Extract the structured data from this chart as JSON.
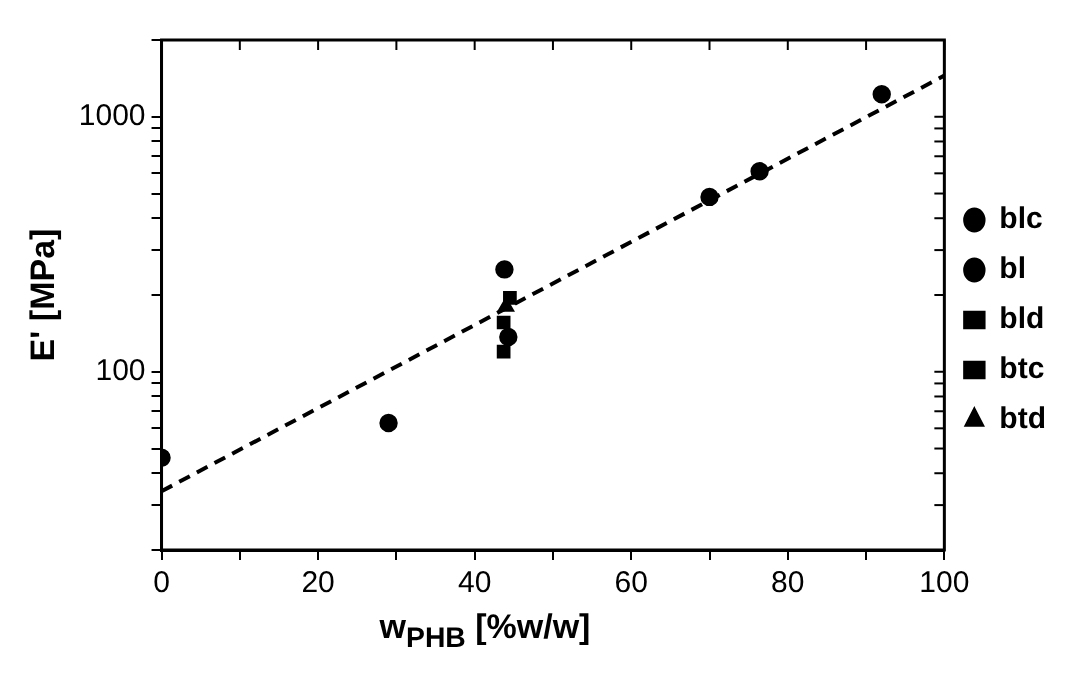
{
  "chart_data": {
    "type": "scatter",
    "xlabel": "w$_{PHB}$ [%w/w]",
    "ylabel": "E' [MPa]",
    "log": "y",
    "grid": false,
    "legend": "right",
    "xlim": [
      0,
      100
    ],
    "ylim": [
      20,
      2000
    ],
    "xticks": [
      0,
      {
        "value": 10,
        "label": null
      },
      20,
      {
        "value": 30,
        "label": null
      },
      40,
      {
        "value": 50,
        "label": null
      },
      60,
      {
        "value": 70,
        "label": null
      },
      80,
      {
        "value": 90,
        "label": null
      },
      100
    ],
    "yticks": [
      {
        "value": 20,
        "label": null
      },
      {
        "value": 30,
        "label": null
      },
      {
        "value": 40,
        "label": null
      },
      {
        "value": 50,
        "label": null
      },
      {
        "value": 60,
        "label": null
      },
      {
        "value": 70,
        "label": null
      },
      {
        "value": 80,
        "label": null
      },
      {
        "value": 90,
        "label": null
      },
      100,
      {
        "value": 200,
        "label": null
      },
      {
        "value": 300,
        "label": null
      },
      {
        "value": 400,
        "label": null
      },
      {
        "value": 500,
        "label": null
      },
      {
        "value": 600,
        "label": null
      },
      {
        "value": 700,
        "label": null
      },
      {
        "value": 800,
        "label": null
      },
      {
        "value": 900,
        "label": null
      },
      1000,
      {
        "value": 2000,
        "label": null
      }
    ],
    "series": [
      {
        "name": "blc",
        "color": "#000000",
        "marker": "circle",
        "x": [
          0,
          29,
          43.8,
          44.3,
          70,
          76.4
        ],
        "values": [
          46,
          63,
          252,
          137,
          485,
          611
        ]
      },
      {
        "name": "bl",
        "color": "#000000",
        "marker": "circle",
        "x": [
          92
        ],
        "values": [
          1225
        ]
      },
      {
        "name": "bld",
        "color": "#000000",
        "marker": "square",
        "x": [
          43.7,
          43.7
        ],
        "values": [
          120,
          156
        ]
      },
      {
        "name": "btc",
        "color": "#000000",
        "marker": "square",
        "x": [
          44.5
        ],
        "values": [
          195
        ]
      },
      {
        "name": "btd",
        "color": "#000000",
        "marker": "triangle",
        "x": [
          44
        ],
        "values": [
          180
        ]
      },
      {
        "type": "line",
        "color": "#000000",
        "marker": "none",
        "line_style": "dashed",
        "x": [
          0,
          100
        ],
        "values": [
          34,
          1450
        ]
      }
    ]
  }
}
